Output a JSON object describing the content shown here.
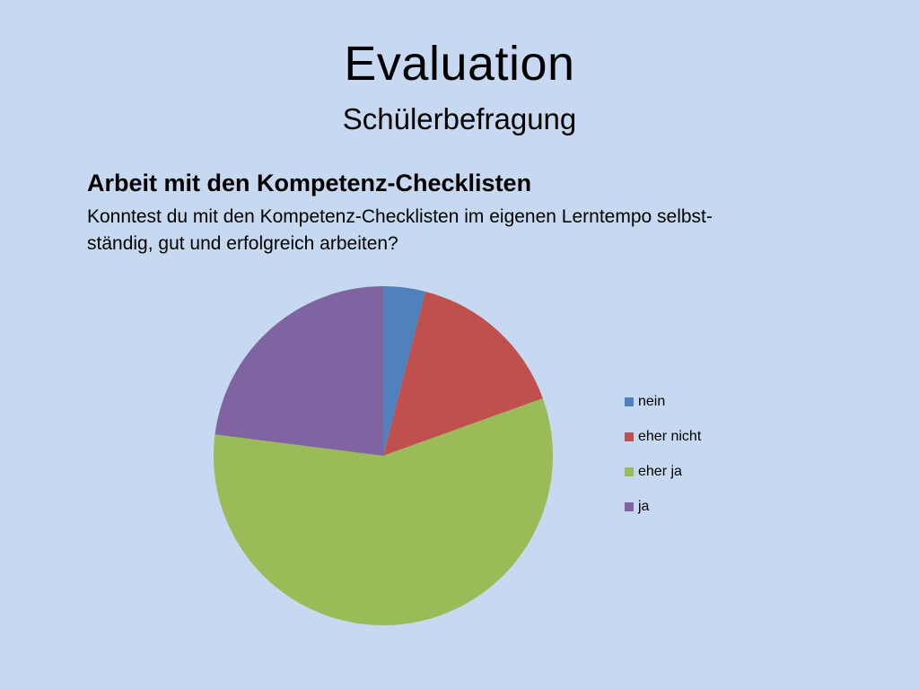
{
  "slide": {
    "title": "Evaluation",
    "subtitle": "Schülerbefragung",
    "heading": "Arbeit mit den Kompetenz-Checklisten",
    "question_lines": [
      "Konntest du mit den Kompetenz-Checklisten im eigenen Lerntempo selbst-",
      "ständig, gut und erfolgreich arbeiten?"
    ]
  },
  "chart_data": {
    "type": "pie",
    "categories": [
      "nein",
      "eher nicht",
      "eher ja",
      "ja"
    ],
    "values": [
      4,
      15.5,
      57.5,
      23
    ],
    "colors": [
      "#4f81bd",
      "#c0504d",
      "#9bbb59",
      "#8064a2"
    ],
    "start_angle": "12 o'clock",
    "direction": "clockwise",
    "legend_position": "right"
  }
}
